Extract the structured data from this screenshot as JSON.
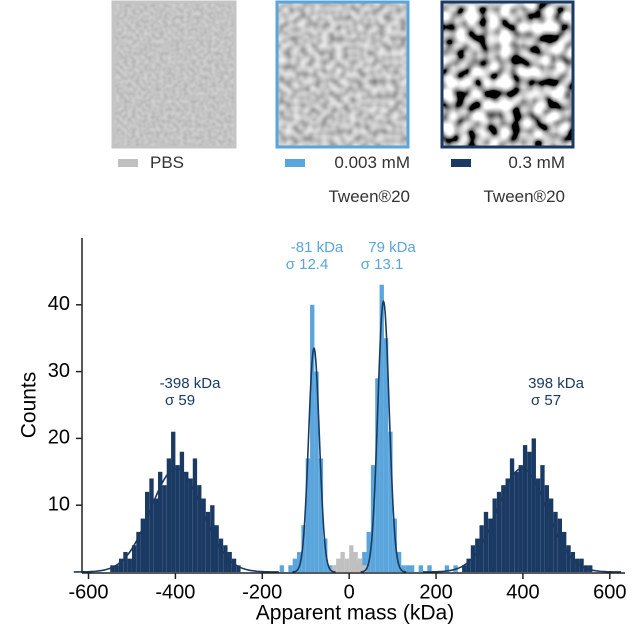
{
  "chart_data": {
    "type": "histogram",
    "x_label": "Apparent mass (kDa)",
    "y_label": "Counts",
    "xlim": [
      -615,
      635
    ],
    "ylim": [
      0,
      50
    ],
    "xticks": [
      -600,
      -400,
      -200,
      0,
      200,
      400,
      600
    ],
    "yticks": [
      10,
      20,
      30,
      40
    ],
    "series": [
      {
        "name": "0.3 mM Tween®20",
        "color": "#1a3a63",
        "bins": [
          -560,
          -550,
          -540,
          -530,
          -520,
          -510,
          -500,
          -490,
          -480,
          -470,
          -460,
          -450,
          -440,
          -430,
          -420,
          -410,
          -400,
          -390,
          -380,
          -370,
          -360,
          -350,
          -340,
          -330,
          -320,
          -310,
          -300,
          -290,
          -280,
          -270,
          -260,
          -250,
          -240,
          -230,
          -220,
          -210,
          -200,
          -190,
          -180,
          -170,
          -160,
          -150,
          -140,
          -130,
          -120,
          -110,
          -100,
          -90,
          -80,
          -70,
          -60,
          -50,
          -40,
          -30,
          -20,
          -10,
          0,
          10,
          20,
          30,
          40,
          50,
          60,
          70,
          80,
          90,
          100,
          110,
          120,
          130,
          140,
          150,
          160,
          170,
          180,
          190,
          200,
          210,
          220,
          230,
          240,
          250,
          260,
          270,
          280,
          290,
          300,
          310,
          320,
          330,
          340,
          350,
          360,
          370,
          380,
          390,
          400,
          410,
          420,
          430,
          440,
          450,
          460,
          470,
          480,
          490,
          500,
          510,
          520,
          530,
          540,
          550,
          560
        ],
        "values": [
          0,
          1,
          1,
          2,
          3,
          2,
          4,
          6,
          8,
          12,
          14,
          11,
          15,
          13,
          17,
          21,
          16,
          18,
          15,
          14,
          17,
          13,
          11,
          9,
          10,
          7,
          5,
          4,
          3,
          2,
          1,
          0,
          0,
          0,
          0,
          0,
          0,
          0,
          0,
          0,
          0,
          0,
          0,
          0,
          0,
          0,
          0,
          0,
          0,
          0,
          0,
          0,
          0,
          0,
          0,
          0,
          0,
          0,
          0,
          0,
          0,
          0,
          0,
          0,
          0,
          0,
          0,
          0,
          0,
          0,
          0,
          0,
          0,
          0,
          0,
          0,
          0,
          0,
          0,
          0,
          0,
          0,
          1,
          2,
          4,
          5,
          7,
          9,
          8,
          11,
          12,
          13,
          14,
          17,
          15,
          16,
          19,
          18,
          20,
          14,
          16,
          13,
          11,
          9,
          8,
          6,
          4,
          3,
          2,
          2,
          1,
          1
        ]
      },
      {
        "name": "0.003 mM Tween®20",
        "color": "#5aa5dc",
        "bins": [
          -160,
          -150,
          -140,
          -130,
          -120,
          -110,
          -100,
          -90,
          -80,
          -70,
          -60,
          -50,
          -40,
          -30,
          -20,
          -10,
          0,
          10,
          20,
          30,
          40,
          50,
          60,
          70,
          80,
          90,
          100,
          110,
          120,
          130,
          140,
          150,
          160,
          170,
          180,
          190,
          200,
          210,
          220,
          230,
          240,
          250,
          260
        ],
        "values": [
          1,
          0,
          1,
          2,
          3,
          7,
          17,
          40,
          30,
          17,
          5,
          1,
          1,
          0,
          0,
          0,
          0,
          1,
          2,
          3,
          6,
          16,
          29,
          43,
          35,
          21,
          8,
          3,
          1,
          1,
          1,
          0,
          1,
          0,
          1,
          0,
          0,
          0,
          1,
          0,
          1,
          0
        ]
      },
      {
        "name": "PBS",
        "color": "#c0c0c0",
        "bins": [
          -40,
          -30,
          -20,
          -10,
          0,
          10,
          20,
          30,
          40
        ],
        "values": [
          1,
          2,
          3,
          2,
          4,
          3,
          2,
          1
        ]
      }
    ],
    "fits": [
      {
        "mean_label": "-398 kDa",
        "sigma_label": "σ 59",
        "mean": -398,
        "sigma": 59,
        "peak": 15.5,
        "color": "#1a3a63"
      },
      {
        "mean_label": "-81 kDa",
        "sigma_label": "σ 12.4",
        "mean": -81,
        "sigma": 12.4,
        "peak": 33.5,
        "color": "#5aa5dc"
      },
      {
        "mean_label": "79 kDa",
        "sigma_label": "σ 13.1",
        "mean": 79,
        "sigma": 13.1,
        "peak": 40.5,
        "color": "#5aa5dc"
      },
      {
        "mean_label": "398 kDa",
        "sigma_label": "σ 57",
        "mean": 398,
        "sigma": 57,
        "peak": 15.5,
        "color": "#1a3a63"
      }
    ],
    "fit_color": "#1a3a63"
  }
}
